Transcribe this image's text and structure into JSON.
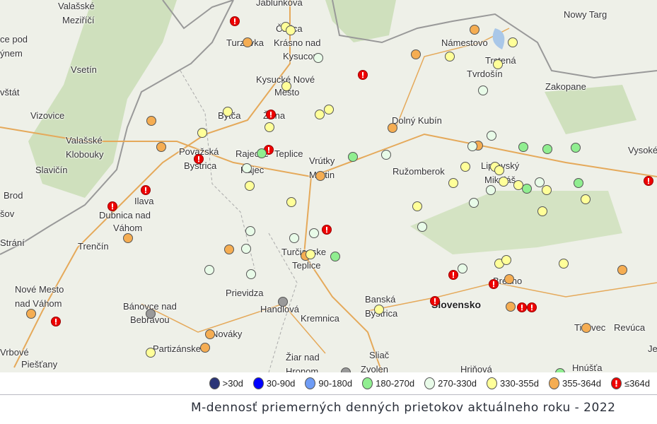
{
  "map": {
    "places": [
      "Valašské",
      "Meziříčí",
      "Jablunkova",
      "Nowy Targ",
      "Čadca",
      "Krásno nad",
      "Kysucou",
      "Turzovka",
      "Námestovo",
      "Trstená",
      "Tvrdošín",
      "ce pod",
      "ýnem",
      "Vsetín",
      "Kysucké Nové",
      "Mesto",
      "Zakopane",
      "vštát",
      "Vizovice",
      "Bytča",
      "Žilina",
      "Dolný Kubín",
      "Valašské",
      "Klobouky",
      "Považská",
      "Bystrica",
      "Rajecké",
      "Teplice",
      "Vrútky",
      "Martin",
      "Ružomberok",
      "Liptovský",
      "Mikuláš",
      "Vysoké",
      "Slavičín",
      "Rajec",
      "Brod",
      "Ilava",
      "Dubnica nad",
      "Váhom",
      "šov",
      "Trenčín",
      "Strání",
      "Turčianske",
      "Teplice",
      "Prievidza",
      "Nové Mesto",
      "nad Váhom",
      "Bánovce nad",
      "Bebravou",
      "Handlová",
      "Brezno",
      "Banská",
      "Bystrica",
      "Kremnica",
      "Nováky",
      "Tisovec",
      "Revúca",
      "Partizánske",
      "Jel",
      "Vrbové",
      "Piešťany",
      "Žiar nad",
      "Hronom",
      "Sliač",
      "Zvolen",
      "Hriňová",
      "Hnúšťa"
    ],
    "country_label": "Slovensko",
    "marker_categories": {
      "c0": {
        "label": ">30d",
        "color": "#2b3577"
      },
      "c1": {
        "label": "30-90d",
        "color": "#0000ff"
      },
      "c2": {
        "label": "90-180d",
        "color": "#6f9cf5"
      },
      "c3": {
        "label": "180-270d",
        "color": "#90ee90"
      },
      "c4": {
        "label": "270-330d",
        "color": "#e8fbe8"
      },
      "c5": {
        "label": "330-355d",
        "color": "#ffff99"
      },
      "c6": {
        "label": "355-364d",
        "color": "#f5ad52"
      },
      "c7": {
        "label": "≤364d",
        "color": "#ee0000",
        "glyph": "!"
      },
      "gray": {
        "color": "#9a9a9a"
      }
    }
  },
  "legend": {
    "items": [
      {
        "label": ">30d",
        "color": "#2b3577"
      },
      {
        "label": "30-90d",
        "color": "#0000ff"
      },
      {
        "label": "90-180d",
        "color": "#6f9cf5"
      },
      {
        "label": "180-270d",
        "color": "#90ee90"
      },
      {
        "label": "270-330d",
        "color": "#e8fbe8"
      },
      {
        "label": "330-355d",
        "color": "#ffff99"
      },
      {
        "label": "355-364d",
        "color": "#f5ad52"
      },
      {
        "label": "≤364d",
        "color": "#ee0000",
        "glyph": "!"
      }
    ]
  },
  "caption": "M-dennosť priemerných denných prietokov aktuálneho roku - 2022"
}
